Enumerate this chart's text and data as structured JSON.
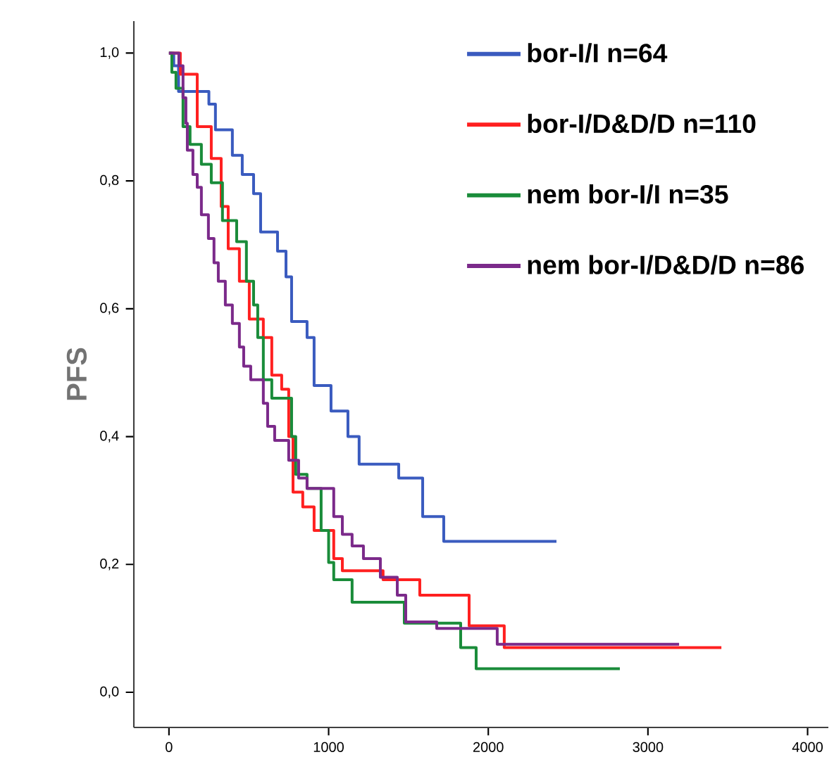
{
  "chart_data": {
    "type": "step",
    "ylabel": "PFS",
    "legend": "top right",
    "marker": "none",
    "grid": false,
    "xlim": [
      -220,
      4130
    ],
    "ylim": [
      -0.055,
      1.05
    ],
    "xticks": [
      0,
      1000,
      2000,
      3000,
      4000
    ],
    "yticks": [
      {
        "value": 0.0,
        "label": "0,0"
      },
      {
        "value": 0.2,
        "label": "0,2"
      },
      {
        "value": 0.4,
        "label": "0,4"
      },
      {
        "value": 0.6,
        "label": "0,6"
      },
      {
        "value": 0.8,
        "label": "0,8"
      },
      {
        "value": 1.0,
        "label": "1,0"
      }
    ],
    "series": [
      {
        "name": "bor-I/I n=64",
        "color": "#3a5bbf",
        "x": [
          0,
          30,
          60,
          250,
          291,
          397,
          459,
          530,
          574,
          680,
          733,
          768,
          865,
          909,
          1015,
          1121,
          1191,
          1439,
          1589,
          1721,
          2427
        ],
        "values": [
          1.0,
          0.98,
          0.94,
          0.92,
          0.88,
          0.84,
          0.81,
          0.78,
          0.72,
          0.69,
          0.65,
          0.58,
          0.555,
          0.48,
          0.44,
          0.4,
          0.357,
          0.335,
          0.275,
          0.236,
          0.236
        ]
      },
      {
        "name": "bor-I/D&D/D n=110",
        "color": "#ff2020",
        "x": [
          0,
          71,
          177,
          265,
          327,
          371,
          441,
          503,
          591,
          644,
          706,
          750,
          777,
          838,
          909,
          1032,
          1086,
          1341,
          1571,
          1880,
          2100,
          3460
        ],
        "values": [
          1.0,
          0.967,
          0.885,
          0.835,
          0.76,
          0.694,
          0.643,
          0.584,
          0.555,
          0.496,
          0.474,
          0.4,
          0.313,
          0.29,
          0.253,
          0.209,
          0.19,
          0.176,
          0.152,
          0.104,
          0.07,
          0.07
        ]
      },
      {
        "name": "nem bor-I/I n=35",
        "color": "#1a8c3a",
        "x": [
          0,
          18,
          44,
          88,
          132,
          203,
          265,
          335,
          424,
          485,
          530,
          556,
          591,
          644,
          768,
          794,
          865,
          953,
          1000,
          1032,
          1147,
          1474,
          1827,
          1924,
          2824
        ],
        "values": [
          1.0,
          0.97,
          0.945,
          0.885,
          0.857,
          0.826,
          0.797,
          0.738,
          0.705,
          0.643,
          0.606,
          0.555,
          0.489,
          0.46,
          0.4,
          0.341,
          0.319,
          0.253,
          0.203,
          0.176,
          0.141,
          0.108,
          0.07,
          0.037,
          0.037
        ]
      },
      {
        "name": "nem bor-I/D&D/D n=86",
        "color": "#7b2a8a",
        "x": [
          0,
          62,
          88,
          106,
          115,
          150,
          177,
          203,
          247,
          282,
          309,
          353,
          397,
          441,
          468,
          512,
          591,
          618,
          662,
          750,
          812,
          865,
          1032,
          1086,
          1147,
          1218,
          1324,
          1430,
          1483,
          1677,
          2056,
          3195
        ],
        "values": [
          1.0,
          0.98,
          0.93,
          0.89,
          0.848,
          0.81,
          0.79,
          0.747,
          0.71,
          0.672,
          0.643,
          0.606,
          0.577,
          0.54,
          0.51,
          0.489,
          0.452,
          0.416,
          0.394,
          0.363,
          0.335,
          0.319,
          0.275,
          0.247,
          0.229,
          0.209,
          0.18,
          0.152,
          0.11,
          0.1,
          0.075,
          0.075
        ]
      }
    ]
  }
}
